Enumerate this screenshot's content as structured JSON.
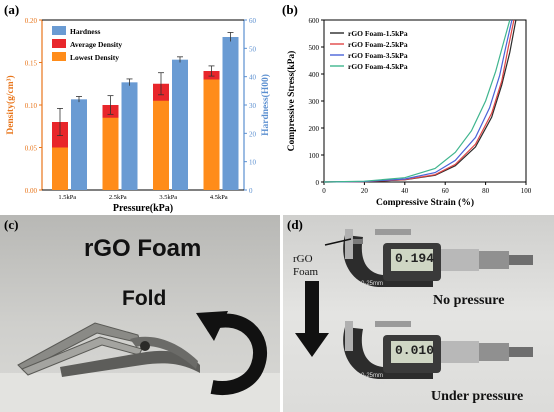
{
  "panels": {
    "a": "(a)",
    "b": "(b)",
    "c": "(c)",
    "d": "(d)"
  },
  "chart_data": [
    {
      "type": "bar",
      "categories": [
        "1.5kPa",
        "2.5kPa",
        "3.5kPa",
        "4.5kPa"
      ],
      "xlabel": "Pressure(kPa)",
      "ylabel": "Density(g/cm³)",
      "ylabel_right": "Hardness(H00)",
      "ylim": [
        0,
        0.2
      ],
      "ylim_right": [
        0,
        60
      ],
      "yticks": [
        "0.00",
        "0.05",
        "0.10",
        "0.15",
        "0.20"
      ],
      "yticks_right": [
        "0",
        "10",
        "20",
        "30",
        "40",
        "50",
        "60"
      ],
      "legend_position": "top-left",
      "grid": false,
      "colors": {
        "hardness": "#6a9bd3",
        "average": "#e8262b",
        "lowest": "#ff8c1a",
        "left_axis": "#e8751a",
        "right_axis": "#5b8fd0"
      },
      "series": [
        {
          "name": "Hardness",
          "axis": "right",
          "values": [
            32,
            38,
            46,
            54
          ],
          "errors": [
            1,
            1.2,
            1,
            1.6
          ]
        },
        {
          "name": "Average Density",
          "axis": "left",
          "values": [
            0.08,
            0.1,
            0.125,
            0.14
          ],
          "errors": [
            0.016,
            0.011,
            0.013,
            0.006
          ]
        },
        {
          "name": "Lowest Density",
          "axis": "left",
          "values": [
            0.05,
            0.085,
            0.105,
            0.13
          ]
        }
      ]
    },
    {
      "type": "line",
      "xlabel": "Compressive Strain (%)",
      "ylabel": "Compressive Stress(kPa)",
      "xlim": [
        0,
        100
      ],
      "ylim": [
        0,
        600
      ],
      "xticks": [
        "0",
        "20",
        "40",
        "60",
        "80",
        "100"
      ],
      "yticks": [
        "0",
        "100",
        "200",
        "300",
        "400",
        "500",
        "600"
      ],
      "legend_position": "top-left",
      "grid": false,
      "series": [
        {
          "name": "rGO Foam-1.5kPa",
          "color": "#2b2b2b",
          "points": [
            [
              0,
              0
            ],
            [
              20,
              1
            ],
            [
              40,
              8
            ],
            [
              55,
              25
            ],
            [
              65,
              60
            ],
            [
              75,
              130
            ],
            [
              83,
              240
            ],
            [
              88,
              360
            ],
            [
              92,
              480
            ],
            [
              95,
              600
            ]
          ]
        },
        {
          "name": "rGO Foam-2.5kPa",
          "color": "#e04646",
          "points": [
            [
              0,
              0
            ],
            [
              20,
              1
            ],
            [
              40,
              9
            ],
            [
              55,
              27
            ],
            [
              65,
              65
            ],
            [
              75,
              140
            ],
            [
              83,
              255
            ],
            [
              88,
              375
            ],
            [
              91,
              490
            ],
            [
              94,
              600
            ]
          ]
        },
        {
          "name": "rGO Foam-3.5kPa",
          "color": "#4a63d8",
          "points": [
            [
              0,
              0
            ],
            [
              20,
              2
            ],
            [
              40,
              11
            ],
            [
              55,
              35
            ],
            [
              65,
              80
            ],
            [
              75,
              165
            ],
            [
              82,
              275
            ],
            [
              87,
              395
            ],
            [
              90,
              500
            ],
            [
              93,
              600
            ]
          ]
        },
        {
          "name": "rGO Foam-4.5kPa",
          "color": "#3fb58e",
          "points": [
            [
              0,
              0
            ],
            [
              20,
              3
            ],
            [
              40,
              16
            ],
            [
              55,
              50
            ],
            [
              65,
              110
            ],
            [
              73,
              190
            ],
            [
              80,
              300
            ],
            [
              85,
              410
            ],
            [
              89,
              520
            ],
            [
              92,
              600
            ]
          ]
        }
      ]
    }
  ],
  "photo_c": {
    "title": "rGO Foam",
    "fold_label": "Fold"
  },
  "photo_d": {
    "foam_label_line1": "rGO",
    "foam_label_line2": "Foam",
    "no_pressure_label": "No pressure",
    "under_pressure_label": "Under pressure",
    "readout_top": "0.194",
    "readout_bottom": "0.010",
    "scale_label": "0-25mm",
    "resolution_label": "0.001mm"
  }
}
